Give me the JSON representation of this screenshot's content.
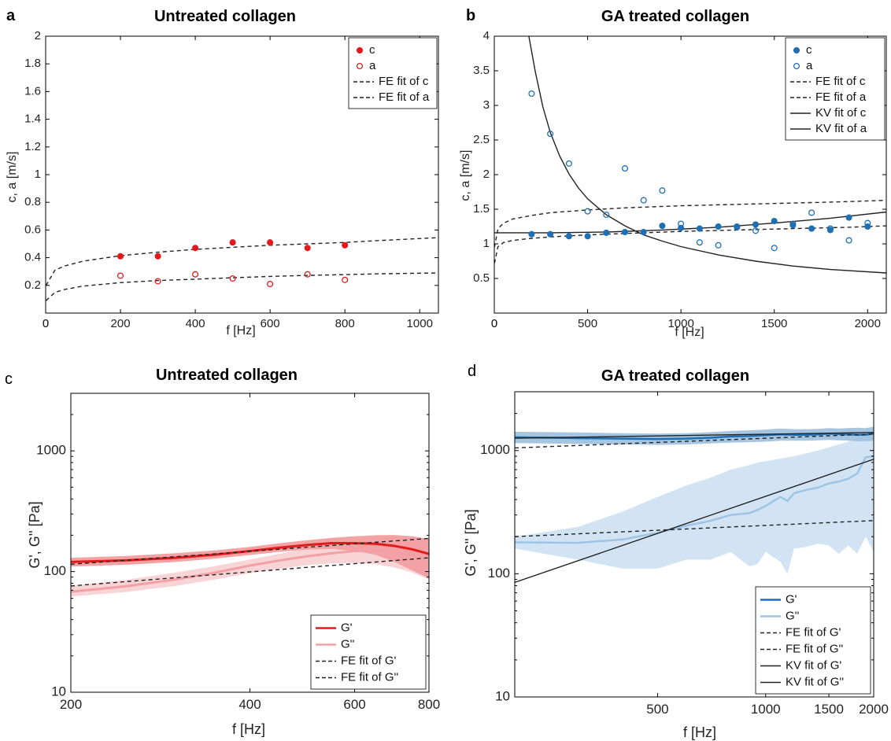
{
  "colors": {
    "red": "#e31a1c",
    "red_light": "#f2a0a6",
    "blue": "#1f6fb4",
    "blue_light": "#9cc4e4",
    "fit": "#222222"
  },
  "chart_data": [
    {
      "panel": "a",
      "type": "scatter",
      "title": "Untreated collagen",
      "xlabel": "f [Hz]",
      "ylabel": "c, a [m/s]",
      "xlim": [
        0,
        1050
      ],
      "ylim": [
        0,
        2
      ],
      "xticks": [
        0,
        200,
        400,
        600,
        800,
        1000
      ],
      "yticks": [
        0.2,
        0.4,
        0.6,
        0.8,
        1,
        1.2,
        1.4,
        1.6,
        1.8,
        2
      ],
      "legend_position": "top-right",
      "legend": [
        "c",
        "a",
        "FE fit of c",
        "FE fit of a"
      ],
      "series": [
        {
          "name": "c",
          "style": "filled-marker",
          "x": [
            200,
            300,
            400,
            500,
            600,
            700,
            800
          ],
          "y": [
            0.41,
            0.41,
            0.47,
            0.51,
            0.51,
            0.47,
            0.49
          ]
        },
        {
          "name": "a",
          "style": "open-marker",
          "x": [
            200,
            300,
            400,
            500,
            600,
            700,
            800
          ],
          "y": [
            0.27,
            0.23,
            0.28,
            0.25,
            0.21,
            0.28,
            0.24
          ]
        },
        {
          "name": "FE fit of c",
          "style": "dashed",
          "x": [
            1,
            25,
            50,
            100,
            200,
            300,
            400,
            500,
            600,
            700,
            800,
            900,
            1050
          ],
          "y": [
            0.2,
            0.31,
            0.34,
            0.375,
            0.415,
            0.44,
            0.46,
            0.475,
            0.49,
            0.5,
            0.51,
            0.525,
            0.545
          ]
        },
        {
          "name": "FE fit of a",
          "style": "dashed",
          "x": [
            1,
            25,
            50,
            100,
            200,
            300,
            400,
            500,
            600,
            700,
            800,
            900,
            1050
          ],
          "y": [
            0.09,
            0.15,
            0.17,
            0.195,
            0.22,
            0.235,
            0.245,
            0.255,
            0.265,
            0.272,
            0.278,
            0.284,
            0.29
          ]
        }
      ]
    },
    {
      "panel": "b",
      "type": "scatter",
      "title": "GA treated collagen",
      "xlabel": "f [Hz]",
      "ylabel": "c, a [m/s]",
      "xlim": [
        0,
        2100
      ],
      "ylim": [
        0,
        4
      ],
      "xticks": [
        0,
        500,
        1000,
        1500,
        2000
      ],
      "yticks": [
        0.5,
        1,
        1.5,
        2,
        2.5,
        3,
        3.5,
        4
      ],
      "legend_position": "top-right",
      "legend": [
        "c",
        "a",
        "FE fit of c",
        "FE fit of a",
        "KV fit of c",
        "KV fit of a"
      ],
      "series": [
        {
          "name": "c",
          "style": "filled-marker",
          "x": [
            200,
            300,
            400,
            500,
            600,
            700,
            800,
            900,
            1000,
            1100,
            1200,
            1300,
            1400,
            1500,
            1600,
            1700,
            1800,
            1900,
            2000
          ],
          "y": [
            1.14,
            1.14,
            1.11,
            1.11,
            1.16,
            1.17,
            1.17,
            1.26,
            1.23,
            1.22,
            1.25,
            1.24,
            1.28,
            1.33,
            1.27,
            1.22,
            1.2,
            1.38,
            1.25
          ]
        },
        {
          "name": "a",
          "style": "open-marker",
          "x": [
            200,
            300,
            400,
            500,
            600,
            700,
            800,
            900,
            1000,
            1100,
            1200,
            1300,
            1400,
            1500,
            1600,
            1700,
            1800,
            1900,
            2000
          ],
          "y": [
            3.17,
            2.59,
            2.16,
            1.47,
            1.42,
            2.09,
            1.63,
            1.77,
            1.29,
            1.02,
            0.98,
            1.25,
            1.19,
            0.94,
            1.29,
            1.45,
            1.22,
            1.05,
            1.3
          ]
        },
        {
          "name": "FE fit of c",
          "style": "dashed",
          "x": [
            1,
            20,
            50,
            100,
            200,
            300,
            500,
            700,
            1000,
            1300,
            1600,
            1900,
            2100
          ],
          "y": [
            0.95,
            1.22,
            1.3,
            1.36,
            1.41,
            1.45,
            1.49,
            1.52,
            1.55,
            1.57,
            1.59,
            1.61,
            1.63
          ]
        },
        {
          "name": "FE fit of a",
          "style": "dashed",
          "x": [
            1,
            20,
            50,
            100,
            200,
            300,
            500,
            700,
            1000,
            1300,
            1600,
            1900,
            2100
          ],
          "y": [
            0.72,
            0.96,
            1.02,
            1.05,
            1.08,
            1.1,
            1.13,
            1.15,
            1.18,
            1.2,
            1.22,
            1.24,
            1.26
          ]
        },
        {
          "name": "KV fit of c",
          "style": "solid",
          "x": [
            0,
            300,
            600,
            900,
            1200,
            1500,
            1800,
            2100
          ],
          "y": [
            1.16,
            1.16,
            1.17,
            1.2,
            1.24,
            1.3,
            1.37,
            1.46
          ]
        },
        {
          "name": "KV fit of a",
          "style": "solid",
          "x": [
            185,
            220,
            260,
            300,
            350,
            400,
            450,
            500,
            600,
            700,
            800,
            900,
            1000,
            1200,
            1400,
            1600,
            1800,
            2100
          ],
          "y": [
            4.0,
            3.48,
            2.98,
            2.61,
            2.27,
            2.01,
            1.81,
            1.65,
            1.42,
            1.26,
            1.13,
            1.04,
            0.96,
            0.84,
            0.75,
            0.68,
            0.63,
            0.58
          ]
        }
      ]
    },
    {
      "panel": "c",
      "type": "line",
      "title": "Untreated collagen",
      "xlabel": "f [Hz]",
      "ylabel": "G', G'' [Pa]",
      "x_scale": "log",
      "y_scale": "log",
      "xlim": [
        200,
        800
      ],
      "ylim": [
        10,
        3000
      ],
      "xticks": [
        200,
        400,
        600,
        800
      ],
      "yticks": [
        10,
        100,
        1000
      ],
      "legend_position": "bottom-right",
      "legend": [
        "G'",
        "G''",
        "FE fit of G'",
        "FE fit of G''"
      ],
      "series": [
        {
          "name": "G'",
          "style": "solid",
          "x": [
            200,
            250,
            300,
            350,
            400,
            450,
            500,
            550,
            600,
            650,
            700,
            750,
            800
          ],
          "y": [
            120,
            124,
            130,
            138,
            148,
            158,
            166,
            172,
            172,
            170,
            163,
            153,
            140
          ],
          "band_low": [
            110,
            114,
            120,
            128,
            137,
            146,
            152,
            154,
            148,
            138,
            120,
            102,
            88
          ],
          "band_high": [
            130,
            135,
            142,
            150,
            160,
            172,
            182,
            190,
            196,
            200,
            201,
            196,
            186
          ]
        },
        {
          "name": "G''",
          "style": "solid",
          "x": [
            200,
            250,
            300,
            350,
            400,
            450,
            500,
            550,
            600,
            650,
            700,
            750,
            800
          ],
          "y": [
            68,
            76,
            86,
            98,
            112,
            124,
            134,
            142,
            148,
            150,
            146,
            138,
            128
          ],
          "band_low": [
            62,
            68,
            76,
            86,
            97,
            106,
            113,
            117,
            118,
            115,
            108,
            98,
            86
          ],
          "band_high": [
            76,
            86,
            98,
            111,
            126,
            141,
            155,
            168,
            180,
            189,
            194,
            194,
            188
          ]
        },
        {
          "name": "FE fit of G'",
          "style": "dashed",
          "x": [
            200,
            800
          ],
          "y": [
            115,
            188
          ]
        },
        {
          "name": "FE fit of G''",
          "style": "dashed",
          "x": [
            200,
            800
          ],
          "y": [
            76,
            130
          ]
        }
      ]
    },
    {
      "panel": "d",
      "type": "line",
      "title": "GA treated collagen",
      "xlabel": "f [Hz]",
      "ylabel": "G', G'' [Pa]",
      "x_scale": "log",
      "y_scale": "log",
      "xlim": [
        200,
        2000
      ],
      "ylim": [
        10,
        3000
      ],
      "xticks": [
        500,
        1000,
        1500,
        2000
      ],
      "yticks": [
        10,
        100,
        1000
      ],
      "legend_position": "bottom-right",
      "legend": [
        "G'",
        "G''",
        "FE fit of G'",
        "FE fit of G''",
        "KV fit of G'",
        "KV fit of G''"
      ],
      "series": [
        {
          "name": "G'",
          "style": "solid",
          "x": [
            200,
            300,
            400,
            500,
            600,
            700,
            800,
            900,
            1000,
            1100,
            1200,
            1300,
            1400,
            1500,
            1600,
            1700,
            1800,
            1900,
            2000
          ],
          "y": [
            1280,
            1260,
            1250,
            1240,
            1250,
            1270,
            1300,
            1310,
            1330,
            1350,
            1340,
            1340,
            1350,
            1370,
            1360,
            1350,
            1340,
            1340,
            1380
          ],
          "band_low": [
            1150,
            1130,
            1120,
            1110,
            1120,
            1140,
            1160,
            1170,
            1180,
            1200,
            1200,
            1200,
            1210,
            1220,
            1210,
            1200,
            1190,
            1190,
            1200
          ],
          "band_high": [
            1420,
            1400,
            1380,
            1370,
            1380,
            1410,
            1440,
            1460,
            1480,
            1510,
            1490,
            1490,
            1500,
            1520,
            1510,
            1520,
            1530,
            1520,
            1560
          ]
        },
        {
          "name": "G''",
          "style": "solid",
          "x": [
            200,
            300,
            400,
            500,
            600,
            700,
            800,
            900,
            950,
            1000,
            1100,
            1150,
            1200,
            1300,
            1400,
            1500,
            1600,
            1700,
            1800,
            1900,
            2000
          ],
          "y": [
            180,
            178,
            190,
            215,
            245,
            268,
            300,
            310,
            330,
            355,
            420,
            390,
            450,
            480,
            500,
            540,
            560,
            590,
            650,
            880,
            900
          ],
          "band_low": [
            160,
            130,
            110,
            110,
            130,
            130,
            150,
            115,
            120,
            150,
            125,
            100,
            160,
            165,
            175,
            170,
            145,
            170,
            145,
            200,
            150
          ],
          "band_high": [
            200,
            240,
            320,
            420,
            520,
            600,
            700,
            760,
            800,
            820,
            860,
            880,
            900,
            950,
            1000,
            1060,
            1120,
            1180,
            1250,
            1320,
            1480
          ]
        },
        {
          "name": "FE fit of G'",
          "style": "dashed",
          "x": [
            200,
            2000
          ],
          "y": [
            1050,
            1360
          ]
        },
        {
          "name": "FE fit of G''",
          "style": "dashed",
          "x": [
            200,
            2000
          ],
          "y": [
            200,
            270
          ]
        },
        {
          "name": "KV fit of G'",
          "style": "solid",
          "x": [
            200,
            2000
          ],
          "y": [
            1260,
            1400
          ]
        },
        {
          "name": "KV fit of G''",
          "style": "solid",
          "x": [
            200,
            2000
          ],
          "y": [
            85,
            850
          ]
        }
      ]
    }
  ]
}
